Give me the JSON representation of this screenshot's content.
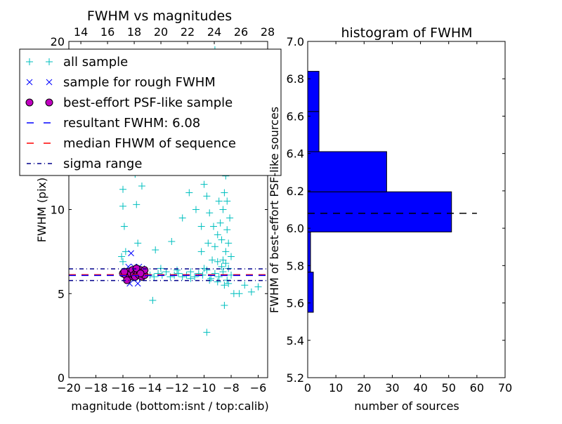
{
  "chart_data": [
    {
      "type": "scatter",
      "title": "FWHM vs magnitudes",
      "xlabel": "magnitude (bottom:isnt / top:calib)",
      "ylabel": "FWHM (pix)",
      "xlim": [
        -20,
        -5.3
      ],
      "ylim": [
        0,
        20
      ],
      "x_ticks": [
        "−20",
        "−18",
        "−16",
        "−14",
        "−12",
        "−10",
        "−8",
        "−6"
      ],
      "x_tick_values": [
        -20,
        -18,
        -16,
        -14,
        -12,
        -10,
        -8,
        -6
      ],
      "top_xlim": [
        13.1,
        28.0
      ],
      "top_ticks": [
        "14",
        "16",
        "18",
        "20",
        "22",
        "24",
        "26",
        "28"
      ],
      "top_tick_values": [
        14,
        16,
        18,
        20,
        22,
        24,
        26,
        28
      ],
      "y_ticks": [
        "0",
        "5",
        "10",
        "15",
        "20"
      ],
      "y_tick_values": [
        0,
        5,
        10,
        15,
        20
      ],
      "legend_position": "upper-left",
      "legend": [
        {
          "label": "all sample",
          "marker": "+",
          "color": "#00bfbf"
        },
        {
          "label": "sample for rough FWHM",
          "marker": "x",
          "color": "#0000ff"
        },
        {
          "label": "best-effort PSF-like sample",
          "marker": "o",
          "color": "#bf00bf"
        },
        {
          "label": "resultant FWHM: 6.08",
          "style": "dashed",
          "color": "#0000ff"
        },
        {
          "label": "median FHWM of sequence",
          "style": "dashed",
          "color": "#ff0000"
        },
        {
          "label": "sigma range",
          "style": "dashdot",
          "color": "#00008b"
        }
      ],
      "resultant_fwhm": 6.08,
      "median_fwhm": 6.12,
      "sigma_range": [
        5.78,
        6.47
      ],
      "series": [
        {
          "name": "all sample",
          "points": [
            [
              -16.0,
              13.0
            ],
            [
              -16.0,
              11.2
            ],
            [
              -16.0,
              10.2
            ],
            [
              -15.9,
              9.0
            ],
            [
              -16.1,
              7.2
            ],
            [
              -16.0,
              6.9
            ],
            [
              -15.8,
              7.5
            ],
            [
              -15.1,
              12.1
            ],
            [
              -15.0,
              10.3
            ],
            [
              -14.6,
              11.4
            ],
            [
              -14.9,
              8.0
            ],
            [
              -13.6,
              7.6
            ],
            [
              -13.8,
              4.6
            ],
            [
              -12.4,
              8.1
            ],
            [
              -11.6,
              9.5
            ],
            [
              -11.1,
              11.0
            ],
            [
              -10.6,
              10.0
            ],
            [
              -10.2,
              9.0
            ],
            [
              -9.8,
              2.7
            ],
            [
              -6.5,
              5.1
            ],
            [
              -7.4,
              5.0
            ],
            [
              -8.5,
              4.3
            ],
            [
              -6.0,
              5.4
            ],
            [
              -7.0,
              5.5
            ],
            [
              -7.8,
              5.0
            ],
            [
              -15.5,
              6.1
            ],
            [
              -14.5,
              6.2
            ],
            [
              -14.0,
              6.1
            ],
            [
              -13.7,
              6.0
            ],
            [
              -13.4,
              6.2
            ],
            [
              -13.1,
              6.1
            ],
            [
              -12.8,
              6.3
            ],
            [
              -12.5,
              6.0
            ],
            [
              -12.2,
              6.1
            ],
            [
              -11.9,
              6.2
            ],
            [
              -11.6,
              6.0
            ],
            [
              -11.3,
              6.1
            ],
            [
              -11.0,
              6.3
            ],
            [
              -10.7,
              6.0
            ],
            [
              -10.4,
              6.2
            ],
            [
              -10.1,
              6.1
            ],
            [
              -9.8,
              6.4
            ],
            [
              -9.5,
              5.9
            ],
            [
              -9.2,
              6.2
            ],
            [
              -8.9,
              6.0
            ],
            [
              -8.6,
              6.3
            ],
            [
              -8.3,
              5.8
            ],
            [
              -8.0,
              6.1
            ],
            [
              -13.2,
              6.5
            ],
            [
              -12.0,
              6.4
            ],
            [
              -11.0,
              5.9
            ],
            [
              -10.0,
              6.5
            ],
            [
              -9.0,
              5.7
            ],
            [
              -8.5,
              5.5
            ],
            [
              -8.2,
              5.6
            ],
            [
              -9.6,
              5.8
            ],
            [
              -9.4,
              7.0
            ],
            [
              -9.2,
              7.8
            ],
            [
              -9.0,
              8.5
            ],
            [
              -8.8,
              9.2
            ],
            [
              -8.6,
              10.0
            ],
            [
              -8.5,
              11.0
            ],
            [
              -8.4,
              12.0
            ],
            [
              -8.7,
              13.0
            ],
            [
              -8.8,
              14.0
            ],
            [
              -8.9,
              15.0
            ],
            [
              -9.0,
              16.0
            ],
            [
              -9.1,
              17.0
            ],
            [
              -9.0,
              18.0
            ],
            [
              -8.9,
              19.0
            ],
            [
              -9.2,
              19.5
            ],
            [
              -8.6,
              7.0
            ],
            [
              -8.4,
              7.5
            ],
            [
              -8.2,
              8.0
            ],
            [
              -8.3,
              8.8
            ],
            [
              -8.1,
              9.5
            ],
            [
              -8.3,
              10.5
            ],
            [
              -8.0,
              7.2
            ],
            [
              -8.7,
              8.2
            ],
            [
              -9.3,
              9.0
            ],
            [
              -9.6,
              9.8
            ],
            [
              -9.8,
              10.8
            ],
            [
              -10.0,
              11.5
            ],
            [
              -9.5,
              12.5
            ],
            [
              -9.3,
              13.5
            ],
            [
              -9.7,
              8.0
            ],
            [
              -10.2,
              7.5
            ],
            [
              -8.9,
              10.5
            ],
            [
              -8.5,
              12.8
            ],
            [
              -9.1,
              14.5
            ],
            [
              -8.6,
              15.5
            ],
            [
              -9.4,
              16.5
            ],
            [
              -9.3,
              18.5
            ],
            [
              -8.8,
              17.5
            ],
            [
              -8.7,
              6.6
            ],
            [
              -8.4,
              6.8
            ],
            [
              -9.0,
              6.9
            ],
            [
              -8.2,
              6.5
            ]
          ]
        },
        {
          "name": "sample for rough FWHM",
          "points": [
            [
              -15.4,
              7.4
            ],
            [
              -15.5,
              5.6
            ],
            [
              -14.9,
              5.6
            ],
            [
              -15.6,
              6.6
            ],
            [
              -15.2,
              6.6
            ],
            [
              -14.8,
              6.6
            ],
            [
              -14.6,
              6.5
            ],
            [
              -15.8,
              6.3
            ],
            [
              -14.4,
              6.2
            ]
          ]
        },
        {
          "name": "best-effort PSF-like sample",
          "points": [
            [
              -16.0,
              6.2
            ],
            [
              -15.8,
              6.1
            ],
            [
              -15.6,
              6.3
            ],
            [
              -15.5,
              6.0
            ],
            [
              -15.4,
              6.2
            ],
            [
              -15.3,
              6.4
            ],
            [
              -15.2,
              6.1
            ],
            [
              -15.1,
              6.0
            ],
            [
              -15.0,
              6.3
            ],
            [
              -14.9,
              6.2
            ],
            [
              -14.8,
              6.1
            ],
            [
              -14.7,
              6.4
            ],
            [
              -14.6,
              6.0
            ],
            [
              -14.5,
              6.2
            ],
            [
              -14.4,
              6.1
            ],
            [
              -14.4,
              6.4
            ],
            [
              -15.7,
              5.8
            ],
            [
              -15.0,
              6.5
            ],
            [
              -15.9,
              6.3
            ],
            [
              -14.7,
              6.2
            ]
          ]
        }
      ]
    },
    {
      "type": "bar",
      "orientation": "horizontal",
      "title": "histogram of FWHM",
      "xlabel": "number of sources",
      "ylabel": "FWHM of best-effort PSF-like sources",
      "xlim": [
        0,
        70
      ],
      "ylim": [
        5.2,
        7.0
      ],
      "x_ticks": [
        "0",
        "10",
        "20",
        "30",
        "40",
        "50",
        "60",
        "70"
      ],
      "x_tick_values": [
        0,
        10,
        20,
        30,
        40,
        50,
        60,
        70
      ],
      "y_ticks": [
        "5.2",
        "5.4",
        "5.6",
        "5.8",
        "6.0",
        "6.2",
        "6.4",
        "6.6",
        "6.8",
        "7.0"
      ],
      "y_tick_values": [
        5.2,
        5.4,
        5.6,
        5.8,
        6.0,
        6.2,
        6.4,
        6.6,
        6.8,
        7.0
      ],
      "bins": [
        [
          5.55,
          5.765
        ],
        [
          5.765,
          5.98
        ],
        [
          5.98,
          6.195
        ],
        [
          6.195,
          6.41
        ],
        [
          6.41,
          6.625
        ],
        [
          6.625,
          6.84
        ]
      ],
      "values": [
        2,
        1,
        51,
        28,
        4,
        4
      ],
      "bar_color": "#0000ff",
      "reference_line": {
        "value": 6.08,
        "x_range": [
          0,
          60
        ],
        "style": "dashed",
        "color": "#000000"
      }
    }
  ]
}
